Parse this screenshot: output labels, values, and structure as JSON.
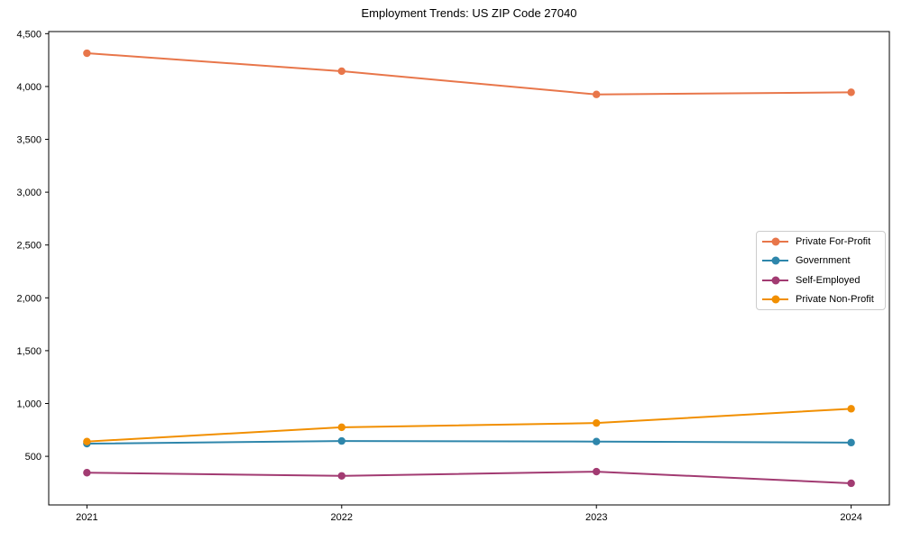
{
  "figure": {
    "background": "#ffffff",
    "axis_color": "#000000"
  },
  "chart_data": {
    "type": "line",
    "title": "Employment Trends: US ZIP Code 27040",
    "xlabel": "",
    "ylabel": "",
    "x": [
      2021,
      2022,
      2023,
      2024
    ],
    "x_tick_labels": [
      "2021",
      "2022",
      "2023",
      "2024"
    ],
    "series": [
      {
        "name": "Private For-Profit",
        "color": "#e8764a",
        "values": [
          4315,
          4145,
          3925,
          3945
        ]
      },
      {
        "name": "Government",
        "color": "#2e86ab",
        "values": [
          620,
          645,
          640,
          630
        ]
      },
      {
        "name": "Self-Employed",
        "color": "#a23b72",
        "values": [
          345,
          315,
          355,
          245
        ]
      },
      {
        "name": "Private Non-Profit",
        "color": "#f18f01",
        "values": [
          640,
          775,
          815,
          950
        ]
      }
    ],
    "xlim": [
      2020.85,
      2024.15
    ],
    "ylim": [
      40,
      4520
    ],
    "yticks": [
      500,
      1000,
      1500,
      2000,
      2500,
      3000,
      3500,
      4000,
      4500
    ],
    "ytick_labels": [
      "500",
      "1,000",
      "1,500",
      "2,000",
      "2,500",
      "3,000",
      "3,500",
      "4,000",
      "4,500"
    ],
    "grid": false,
    "legend_position": "center right",
    "marker": "circle",
    "marker_radius": 4.2,
    "line_width": 2
  }
}
